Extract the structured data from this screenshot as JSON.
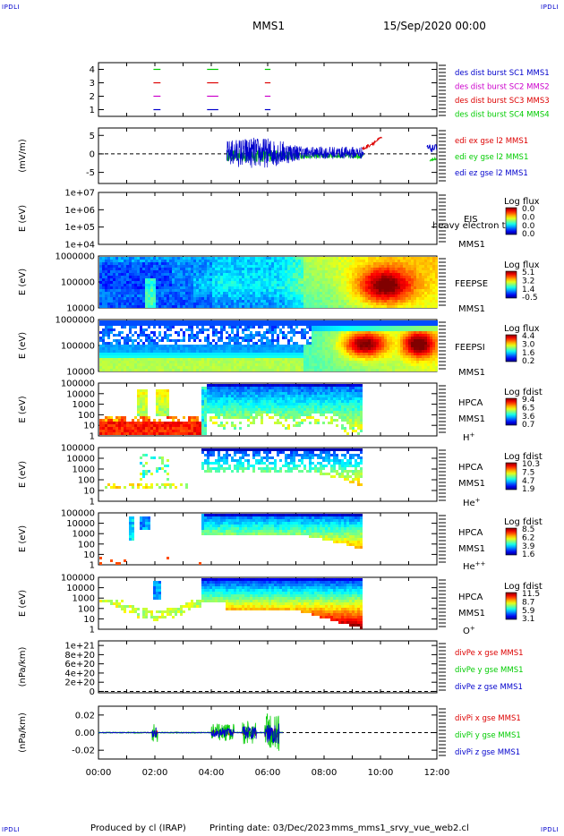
{
  "header": {
    "corner_label": "IPDLI",
    "spacecraft": "MMS1",
    "datetime": "15/Sep/2020 00:00"
  },
  "footer": {
    "produced": "Produced by cl (IRAP)",
    "printed": "Printing date: 03/Dec/2023",
    "file": "mms_mms1_srvy_vue_web2.cl"
  },
  "colors": {
    "red": "#dd0000",
    "green": "#00cc00",
    "blue": "#0000cc",
    "magenta": "#cc00cc"
  },
  "chart_data": [
    {
      "type": "line",
      "id": "burst",
      "ylabel": "",
      "yticks": [
        "1",
        "2",
        "3",
        "4"
      ],
      "ylim": [
        0.5,
        4.5
      ],
      "xlim": [
        0,
        12
      ],
      "series": [
        {
          "name": "des dist burst SC1 MMS1",
          "color": "#0000cc",
          "y": 1,
          "segments": [
            [
              1.95,
              2.2
            ],
            [
              3.85,
              4.25
            ],
            [
              5.9,
              6.1
            ]
          ]
        },
        {
          "name": "des dist burst SC2 MMS2",
          "color": "#cc00cc",
          "y": 2,
          "segments": [
            [
              1.95,
              2.2
            ],
            [
              3.85,
              4.25
            ],
            [
              5.9,
              6.1
            ]
          ]
        },
        {
          "name": "des dist burst SC3 MMS3",
          "color": "#dd0000",
          "y": 3,
          "segments": [
            [
              1.95,
              2.2
            ],
            [
              3.85,
              4.25
            ],
            [
              5.9,
              6.1
            ]
          ]
        },
        {
          "name": "des dist burst SC4 MMS4",
          "color": "#00cc00",
          "y": 4,
          "segments": [
            [
              1.95,
              2.2
            ],
            [
              3.85,
              4.25
            ],
            [
              5.9,
              6.1
            ]
          ]
        }
      ]
    },
    {
      "type": "line",
      "id": "efield",
      "ylabel": "(mV/m)",
      "yticks": [
        "5",
        "0",
        "-5"
      ],
      "ylim": [
        -8,
        7
      ],
      "series": [
        {
          "name": "edi ex gse l2 MMS1",
          "color": "#dd0000"
        },
        {
          "name": "edi ey gse l2 MMS1",
          "color": "#00cc00"
        },
        {
          "name": "edi ez gse l2 MMS1",
          "color": "#0000cc"
        }
      ]
    },
    {
      "type": "heatmap",
      "id": "eis",
      "ylabel": "E (eV)",
      "yticks": [
        "1e+07",
        "1e+06",
        "1e+05",
        "1e+04"
      ],
      "label1": "EIS",
      "label2": "MMS1",
      "overlay": "heavy electron top",
      "colorbar_title": "Log flux",
      "colorbar_ticks": [
        "0.0",
        "0.0",
        "0.0",
        "0.0"
      ]
    },
    {
      "type": "heatmap",
      "id": "feepse",
      "ylabel": "E (eV)",
      "yticks": [
        "1000000",
        "100000",
        "10000"
      ],
      "label1": "FEEPSE",
      "label2": "MMS1",
      "colorbar_title": "Log flux",
      "colorbar_ticks": [
        "5.1",
        "3.2",
        "1.4",
        "-0.5"
      ]
    },
    {
      "type": "heatmap",
      "id": "feepsi",
      "ylabel": "E (eV)",
      "yticks": [
        "1000000",
        "100000",
        "10000"
      ],
      "label1": "FEEPSI",
      "label2": "MMS1",
      "colorbar_title": "Log flux",
      "colorbar_ticks": [
        "4.4",
        "3.0",
        "1.6",
        "0.2"
      ]
    },
    {
      "type": "heatmap",
      "id": "hpca_h",
      "ylabel": "E (eV)",
      "yticks": [
        "100000",
        "10000",
        "1000",
        "100",
        "10",
        "1"
      ],
      "label1": "HPCA",
      "label2": "MMS1",
      "species": "H",
      "charge": "+",
      "colorbar_title": "Log fdist",
      "colorbar_ticks": [
        "9.4",
        "6.5",
        "3.6",
        "0.7"
      ]
    },
    {
      "type": "heatmap",
      "id": "hpca_he",
      "ylabel": "E (eV)",
      "yticks": [
        "100000",
        "10000",
        "1000",
        "100",
        "10",
        "1"
      ],
      "label1": "HPCA",
      "label2": "MMS1",
      "species": "He",
      "charge": "+",
      "colorbar_title": "Log fdist",
      "colorbar_ticks": [
        "10.3",
        "7.5",
        "4.7",
        "1.9"
      ]
    },
    {
      "type": "heatmap",
      "id": "hpca_hepp",
      "ylabel": "E (eV)",
      "yticks": [
        "100000",
        "10000",
        "1000",
        "100",
        "10",
        "1"
      ],
      "label1": "HPCA",
      "label2": "MMS1",
      "species": "He",
      "charge": "++",
      "colorbar_title": "Log fdist",
      "colorbar_ticks": [
        "8.5",
        "6.2",
        "3.9",
        "1.6"
      ]
    },
    {
      "type": "heatmap",
      "id": "hpca_o",
      "ylabel": "E (eV)",
      "yticks": [
        "100000",
        "10000",
        "1000",
        "100",
        "10",
        "1"
      ],
      "label1": "HPCA",
      "label2": "MMS1",
      "species": "O",
      "charge": "+",
      "colorbar_title": "Log fdist",
      "colorbar_ticks": [
        "11.5",
        "8.7",
        "5.9",
        "3.1"
      ]
    },
    {
      "type": "line",
      "id": "divpe",
      "ylabel": "(nPa/km)",
      "yticks": [
        "1e+21",
        "8e+20",
        "6e+20",
        "4e+20",
        "2e+20",
        "0"
      ],
      "ylim": [
        -3e+19,
        1.1e+21
      ],
      "series": [
        {
          "name": "divPe x gse MMS1",
          "color": "#dd0000"
        },
        {
          "name": "divPe y gse MMS1",
          "color": "#00cc00"
        },
        {
          "name": "divPe z gse MMS1",
          "color": "#0000cc"
        }
      ]
    },
    {
      "type": "line",
      "id": "divpi",
      "ylabel": "(nPa/km)",
      "yticks": [
        "0.02",
        "0.00",
        "-0.02"
      ],
      "ylim": [
        -0.03,
        0.03
      ],
      "series": [
        {
          "name": "divPi x gse MMS1",
          "color": "#dd0000"
        },
        {
          "name": "divPi y gse MMS1",
          "color": "#00cc00"
        },
        {
          "name": "divPi z gse MMS1",
          "color": "#0000cc"
        }
      ]
    }
  ],
  "xaxis": {
    "ticks": [
      "00:00",
      "02:00",
      "04:00",
      "06:00",
      "08:00",
      "10:00",
      "12:00"
    ],
    "range": [
      0,
      12
    ]
  }
}
